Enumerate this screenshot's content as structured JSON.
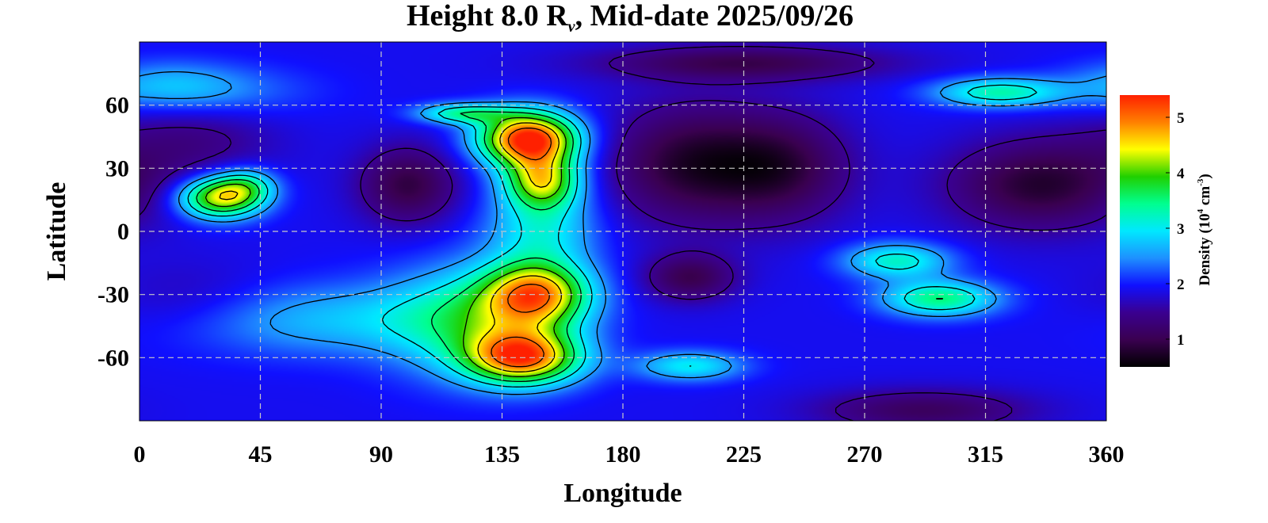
{
  "chart_data": {
    "type": "heatmap",
    "title": {
      "prefix": "Height 8.0 R",
      "subscript": "ν",
      "suffix": ", Mid-date 2025/09/26"
    },
    "xlabel": "Longitude",
    "ylabel": "Latitude",
    "xlim": [
      0,
      360
    ],
    "ylim": [
      -90,
      90
    ],
    "x_ticks": [
      0,
      45,
      90,
      135,
      180,
      225,
      270,
      315,
      360
    ],
    "y_ticks": [
      60,
      30,
      0,
      -30,
      -60
    ],
    "grid": true,
    "grid_style": "dashed",
    "colorbar": {
      "label": {
        "prefix": "Density (10",
        "sup1": "4",
        "middle": " cm",
        "sup2": "-3",
        "suffix": ")"
      },
      "range": [
        0.5,
        5.4
      ],
      "ticks": [
        1,
        2,
        3,
        4,
        5
      ],
      "colors": [
        "#000000",
        "#3a0050",
        "#3a0090",
        "#1010ff",
        "#1e90ff",
        "#00e8ff",
        "#00ff90",
        "#20d000",
        "#ffff00",
        "#ff8000",
        "#ff2000"
      ]
    },
    "background_value": 1.9,
    "features": [
      {
        "lon": 145,
        "lat": 44,
        "slon": 13,
        "slat": 9,
        "amp": 3.6
      },
      {
        "lon": 150,
        "lat": 24,
        "slon": 10,
        "slat": 9,
        "amp": 2.2
      },
      {
        "lon": 120,
        "lat": 56,
        "slon": 12,
        "slat": 3.5,
        "amp": 1.4
      },
      {
        "lon": 150,
        "lat": 2,
        "slon": 14,
        "slat": 14,
        "amp": 1.1
      },
      {
        "lon": 148,
        "lat": -30,
        "slon": 14,
        "slat": 11,
        "amp": 2.6
      },
      {
        "lon": 143,
        "lat": -60,
        "slon": 15,
        "slat": 9,
        "amp": 2.9
      },
      {
        "lon": 125,
        "lat": -42,
        "slon": 22,
        "slat": 18,
        "amp": 1.4
      },
      {
        "lon": 70,
        "lat": -42,
        "slon": 38,
        "slat": 12,
        "amp": 0.8
      },
      {
        "lon": 30,
        "lat": 16,
        "slon": 11,
        "slat": 7,
        "amp": 2.5
      },
      {
        "lon": 40,
        "lat": 22,
        "slon": 8,
        "slat": 6,
        "amp": 1.0
      },
      {
        "lon": 320,
        "lat": 66,
        "slon": 17,
        "slat": 5,
        "amp": 1.4
      },
      {
        "lon": 282,
        "lat": -14,
        "slon": 14,
        "slat": 6,
        "amp": 1.3
      },
      {
        "lon": 298,
        "lat": -32,
        "slon": 15,
        "slat": 6,
        "amp": 1.6
      },
      {
        "lon": 205,
        "lat": -64,
        "slon": 14,
        "slat": 5,
        "amp": 1.1
      },
      {
        "lon": 25,
        "lat": 66,
        "slon": 26,
        "slat": 9,
        "amp": 0.6
      },
      {
        "lon": 10,
        "lat": 70,
        "slon": 18,
        "slat": 8,
        "amp": 0.5
      },
      {
        "lon": 205,
        "lat": 32,
        "slon": 22,
        "slat": 20,
        "amp": -1.1
      },
      {
        "lon": 240,
        "lat": 30,
        "slon": 18,
        "slat": 18,
        "amp": -0.9
      },
      {
        "lon": 335,
        "lat": 22,
        "slon": 24,
        "slat": 15,
        "amp": -1.1
      },
      {
        "lon": 225,
        "lat": 80,
        "slon": 38,
        "slat": 6,
        "amp": -0.9
      },
      {
        "lon": 100,
        "lat": 22,
        "slon": 13,
        "slat": 13,
        "amp": -1.0
      },
      {
        "lon": 205,
        "lat": -22,
        "slon": 12,
        "slat": 8,
        "amp": -0.9
      },
      {
        "lon": 292,
        "lat": -85,
        "slon": 28,
        "slat": 7,
        "amp": -0.8
      },
      {
        "lon": 20,
        "lat": 45,
        "slon": 22,
        "slat": 16,
        "amp": -0.5
      },
      {
        "lon": 20,
        "lat": -32,
        "slon": 22,
        "slat": 12,
        "amp": -0.3
      }
    ]
  }
}
